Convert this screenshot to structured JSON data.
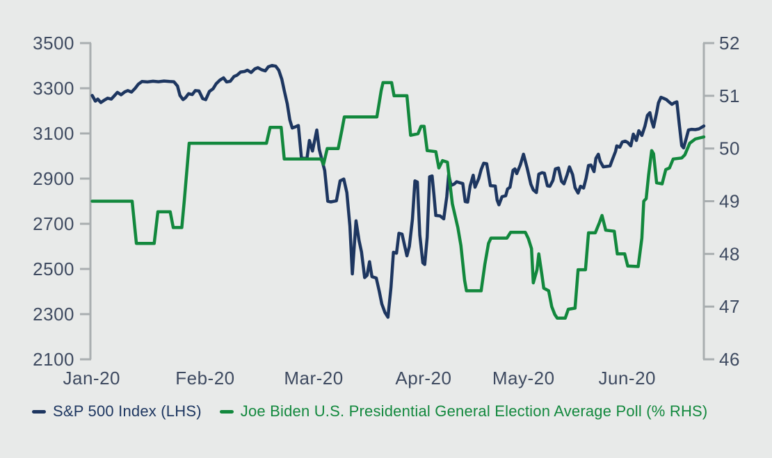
{
  "colors": {
    "background": "#e8eae9",
    "axis": "#a9aeb0",
    "tick_text": "#3e4a60",
    "sp500": "#1d3660",
    "biden": "#12883d"
  },
  "legend": {
    "items": [
      {
        "label": "S&P 500 Index (LHS)",
        "color": "#1d3660"
      },
      {
        "label": "Joe Biden U.S. Presidential General Election Average Poll (% RHS)",
        "color": "#12883d"
      }
    ]
  },
  "chart_data": {
    "type": "line",
    "title": "",
    "grid": false,
    "legend_position": "bottom-left",
    "x_axis": {
      "labels": [
        "Jan-20",
        "Feb-20",
        "Mar-20",
        "Apr-20",
        "May-20",
        "Jun-20"
      ],
      "label_positions": [
        0.002,
        0.187,
        0.364,
        0.543,
        0.706,
        0.875
      ],
      "note": "x values in series points are fractions of the plot width, spanning Jan 2020 to late Jun 2020"
    },
    "left_axis": {
      "min": 2100,
      "max": 3500,
      "step": 200,
      "ticks": [
        3500,
        3300,
        3100,
        2900,
        2700,
        2500,
        2300,
        2100
      ]
    },
    "right_axis": {
      "min": 46,
      "max": 52,
      "step": 1,
      "ticks": [
        52,
        51,
        50,
        49,
        48,
        47,
        46
      ]
    },
    "series": [
      {
        "name": "S&P 500 Index (LHS)",
        "axis": "left",
        "color": "#1d3660",
        "points": [
          [
            0.003,
            3268
          ],
          [
            0.008,
            3243
          ],
          [
            0.012,
            3252
          ],
          [
            0.017,
            3237
          ],
          [
            0.023,
            3248
          ],
          [
            0.028,
            3256
          ],
          [
            0.034,
            3252
          ],
          [
            0.04,
            3270
          ],
          [
            0.044,
            3282
          ],
          [
            0.05,
            3271
          ],
          [
            0.056,
            3284
          ],
          [
            0.061,
            3290
          ],
          [
            0.067,
            3283
          ],
          [
            0.073,
            3300
          ],
          [
            0.078,
            3318
          ],
          [
            0.084,
            3330
          ],
          [
            0.093,
            3328
          ],
          [
            0.102,
            3331
          ],
          [
            0.111,
            3329
          ],
          [
            0.12,
            3332
          ],
          [
            0.129,
            3330
          ],
          [
            0.136,
            3329
          ],
          [
            0.142,
            3310
          ],
          [
            0.146,
            3268
          ],
          [
            0.151,
            3250
          ],
          [
            0.155,
            3258
          ],
          [
            0.16,
            3276
          ],
          [
            0.166,
            3272
          ],
          [
            0.171,
            3290
          ],
          [
            0.177,
            3288
          ],
          [
            0.183,
            3254
          ],
          [
            0.188,
            3250
          ],
          [
            0.194,
            3286
          ],
          [
            0.2,
            3298
          ],
          [
            0.205,
            3320
          ],
          [
            0.211,
            3336
          ],
          [
            0.217,
            3346
          ],
          [
            0.222,
            3328
          ],
          [
            0.228,
            3331
          ],
          [
            0.234,
            3352
          ],
          [
            0.239,
            3358
          ],
          [
            0.245,
            3372
          ],
          [
            0.251,
            3374
          ],
          [
            0.256,
            3380
          ],
          [
            0.262,
            3370
          ],
          [
            0.268,
            3386
          ],
          [
            0.273,
            3391
          ],
          [
            0.279,
            3382
          ],
          [
            0.285,
            3377
          ],
          [
            0.29,
            3395
          ],
          [
            0.296,
            3401
          ],
          [
            0.302,
            3398
          ],
          [
            0.307,
            3380
          ],
          [
            0.312,
            3340
          ],
          [
            0.316,
            3290
          ],
          [
            0.321,
            3230
          ],
          [
            0.325,
            3160
          ],
          [
            0.329,
            3124
          ],
          [
            0.333,
            3128
          ],
          [
            0.339,
            3135
          ],
          [
            0.344,
            2992
          ],
          [
            0.353,
            2988
          ],
          [
            0.357,
            3069
          ],
          [
            0.362,
            3022
          ],
          [
            0.369,
            3115
          ],
          [
            0.373,
            3030
          ],
          [
            0.378,
            2977
          ],
          [
            0.382,
            2935
          ],
          [
            0.387,
            2800
          ],
          [
            0.392,
            2797
          ],
          [
            0.401,
            2802
          ],
          [
            0.407,
            2890
          ],
          [
            0.413,
            2898
          ],
          [
            0.418,
            2838
          ],
          [
            0.423,
            2690
          ],
          [
            0.427,
            2478
          ],
          [
            0.433,
            2713
          ],
          [
            0.438,
            2625
          ],
          [
            0.442,
            2575
          ],
          [
            0.447,
            2462
          ],
          [
            0.451,
            2472
          ],
          [
            0.455,
            2532
          ],
          [
            0.459,
            2466
          ],
          [
            0.466,
            2460
          ],
          [
            0.471,
            2400
          ],
          [
            0.475,
            2345
          ],
          [
            0.48,
            2308
          ],
          [
            0.485,
            2286
          ],
          [
            0.49,
            2420
          ],
          [
            0.494,
            2574
          ],
          [
            0.499,
            2570
          ],
          [
            0.503,
            2658
          ],
          [
            0.508,
            2654
          ],
          [
            0.512,
            2606
          ],
          [
            0.516,
            2558
          ],
          [
            0.52,
            2600
          ],
          [
            0.525,
            2720
          ],
          [
            0.529,
            2890
          ],
          [
            0.533,
            2885
          ],
          [
            0.537,
            2650
          ],
          [
            0.542,
            2527
          ],
          [
            0.545,
            2520
          ],
          [
            0.549,
            2640
          ],
          [
            0.553,
            2908
          ],
          [
            0.557,
            2912
          ],
          [
            0.56,
            2830
          ],
          [
            0.563,
            2737
          ],
          [
            0.57,
            2735
          ],
          [
            0.576,
            2722
          ],
          [
            0.581,
            2820
          ],
          [
            0.584,
            2918
          ],
          [
            0.588,
            2870
          ],
          [
            0.593,
            2876
          ],
          [
            0.597,
            2886
          ],
          [
            0.602,
            2882
          ],
          [
            0.607,
            2878
          ],
          [
            0.611,
            2798
          ],
          [
            0.615,
            2796
          ],
          [
            0.619,
            2868
          ],
          [
            0.624,
            2915
          ],
          [
            0.627,
            2862
          ],
          [
            0.633,
            2900
          ],
          [
            0.637,
            2940
          ],
          [
            0.641,
            2968
          ],
          [
            0.646,
            2966
          ],
          [
            0.652,
            2869
          ],
          [
            0.66,
            2867
          ],
          [
            0.663,
            2805
          ],
          [
            0.666,
            2784
          ],
          [
            0.671,
            2820
          ],
          [
            0.677,
            2824
          ],
          [
            0.68,
            2854
          ],
          [
            0.684,
            2862
          ],
          [
            0.689,
            2937
          ],
          [
            0.692,
            2943
          ],
          [
            0.695,
            2922
          ],
          [
            0.701,
            2962
          ],
          [
            0.706,
            3008
          ],
          [
            0.712,
            2946
          ],
          [
            0.718,
            2875
          ],
          [
            0.722,
            2850
          ],
          [
            0.727,
            2838
          ],
          [
            0.731,
            2920
          ],
          [
            0.736,
            2926
          ],
          [
            0.74,
            2924
          ],
          [
            0.745,
            2868
          ],
          [
            0.749,
            2866
          ],
          [
            0.754,
            2892
          ],
          [
            0.758,
            2943
          ],
          [
            0.763,
            2947
          ],
          [
            0.768,
            2888
          ],
          [
            0.772,
            2877
          ],
          [
            0.777,
            2916
          ],
          [
            0.781,
            2952
          ],
          [
            0.786,
            2918
          ],
          [
            0.79,
            2860
          ],
          [
            0.795,
            2836
          ],
          [
            0.799,
            2866
          ],
          [
            0.804,
            2858
          ],
          [
            0.808,
            2902
          ],
          [
            0.812,
            2958
          ],
          [
            0.816,
            2960
          ],
          [
            0.821,
            2931
          ],
          [
            0.824,
            2990
          ],
          [
            0.828,
            3008
          ],
          [
            0.831,
            2977
          ],
          [
            0.836,
            2952
          ],
          [
            0.841,
            2954
          ],
          [
            0.847,
            2956
          ],
          [
            0.851,
            2985
          ],
          [
            0.856,
            3020
          ],
          [
            0.858,
            3045
          ],
          [
            0.863,
            3039
          ],
          [
            0.867,
            3062
          ],
          [
            0.872,
            3066
          ],
          [
            0.876,
            3060
          ],
          [
            0.881,
            3045
          ],
          [
            0.885,
            3097
          ],
          [
            0.89,
            3069
          ],
          [
            0.894,
            3112
          ],
          [
            0.899,
            3091
          ],
          [
            0.904,
            3132
          ],
          [
            0.908,
            3180
          ],
          [
            0.912,
            3192
          ],
          [
            0.915,
            3155
          ],
          [
            0.918,
            3128
          ],
          [
            0.923,
            3192
          ],
          [
            0.926,
            3235
          ],
          [
            0.93,
            3260
          ],
          [
            0.934,
            3256
          ],
          [
            0.939,
            3250
          ],
          [
            0.943,
            3240
          ],
          [
            0.948,
            3229
          ],
          [
            0.952,
            3236
          ],
          [
            0.956,
            3240
          ],
          [
            0.96,
            3140
          ],
          [
            0.964,
            3046
          ],
          [
            0.967,
            3036
          ],
          [
            0.972,
            3085
          ],
          [
            0.975,
            3115
          ],
          [
            0.98,
            3118
          ],
          [
            0.986,
            3117
          ],
          [
            0.992,
            3120
          ],
          [
            1.0,
            3133
          ]
        ]
      },
      {
        "name": "Joe Biden U.S. Presidential General Election Average Poll (% RHS)",
        "axis": "right",
        "color": "#12883d",
        "points": [
          [
            0.003,
            49.0
          ],
          [
            0.068,
            49.0
          ],
          [
            0.075,
            48.2
          ],
          [
            0.104,
            48.2
          ],
          [
            0.11,
            48.8
          ],
          [
            0.13,
            48.8
          ],
          [
            0.135,
            48.5
          ],
          [
            0.149,
            48.5
          ],
          [
            0.153,
            49.0
          ],
          [
            0.161,
            50.1
          ],
          [
            0.287,
            50.1
          ],
          [
            0.293,
            50.4
          ],
          [
            0.311,
            50.4
          ],
          [
            0.316,
            49.8
          ],
          [
            0.376,
            49.8
          ],
          [
            0.38,
            49.7
          ],
          [
            0.386,
            50.0
          ],
          [
            0.404,
            50.0
          ],
          [
            0.41,
            50.35
          ],
          [
            0.414,
            50.6
          ],
          [
            0.467,
            50.6
          ],
          [
            0.474,
            51.1
          ],
          [
            0.477,
            51.25
          ],
          [
            0.491,
            51.25
          ],
          [
            0.495,
            51.0
          ],
          [
            0.516,
            51.0
          ],
          [
            0.522,
            50.25
          ],
          [
            0.534,
            50.28
          ],
          [
            0.539,
            50.42
          ],
          [
            0.544,
            50.42
          ],
          [
            0.549,
            49.96
          ],
          [
            0.563,
            49.94
          ],
          [
            0.568,
            49.63
          ],
          [
            0.574,
            49.77
          ],
          [
            0.582,
            49.74
          ],
          [
            0.59,
            48.95
          ],
          [
            0.599,
            48.5
          ],
          [
            0.604,
            48.16
          ],
          [
            0.61,
            47.5
          ],
          [
            0.613,
            47.3
          ],
          [
            0.637,
            47.3
          ],
          [
            0.643,
            47.8
          ],
          [
            0.649,
            48.2
          ],
          [
            0.653,
            48.3
          ],
          [
            0.679,
            48.3
          ],
          [
            0.685,
            48.41
          ],
          [
            0.709,
            48.41
          ],
          [
            0.714,
            48.29
          ],
          [
            0.719,
            48.1
          ],
          [
            0.722,
            47.45
          ],
          [
            0.728,
            47.7
          ],
          [
            0.731,
            48.0
          ],
          [
            0.736,
            47.6
          ],
          [
            0.739,
            47.35
          ],
          [
            0.747,
            47.3
          ],
          [
            0.752,
            47.0
          ],
          [
            0.757,
            46.85
          ],
          [
            0.761,
            46.78
          ],
          [
            0.774,
            46.78
          ],
          [
            0.779,
            46.95
          ],
          [
            0.79,
            46.97
          ],
          [
            0.795,
            47.7
          ],
          [
            0.807,
            47.7
          ],
          [
            0.812,
            48.4
          ],
          [
            0.823,
            48.4
          ],
          [
            0.83,
            48.6
          ],
          [
            0.834,
            48.73
          ],
          [
            0.84,
            48.45
          ],
          [
            0.854,
            48.43
          ],
          [
            0.859,
            48.0
          ],
          [
            0.871,
            48.0
          ],
          [
            0.876,
            47.77
          ],
          [
            0.893,
            47.76
          ],
          [
            0.899,
            48.3
          ],
          [
            0.902,
            49.0
          ],
          [
            0.906,
            49.05
          ],
          [
            0.91,
            49.5
          ],
          [
            0.915,
            49.96
          ],
          [
            0.918,
            49.9
          ],
          [
            0.923,
            49.35
          ],
          [
            0.932,
            49.33
          ],
          [
            0.938,
            49.6
          ],
          [
            0.944,
            49.63
          ],
          [
            0.95,
            49.8
          ],
          [
            0.964,
            49.82
          ],
          [
            0.969,
            49.88
          ],
          [
            0.977,
            50.1
          ],
          [
            0.986,
            50.18
          ],
          [
            1.0,
            50.22
          ]
        ]
      }
    ]
  }
}
